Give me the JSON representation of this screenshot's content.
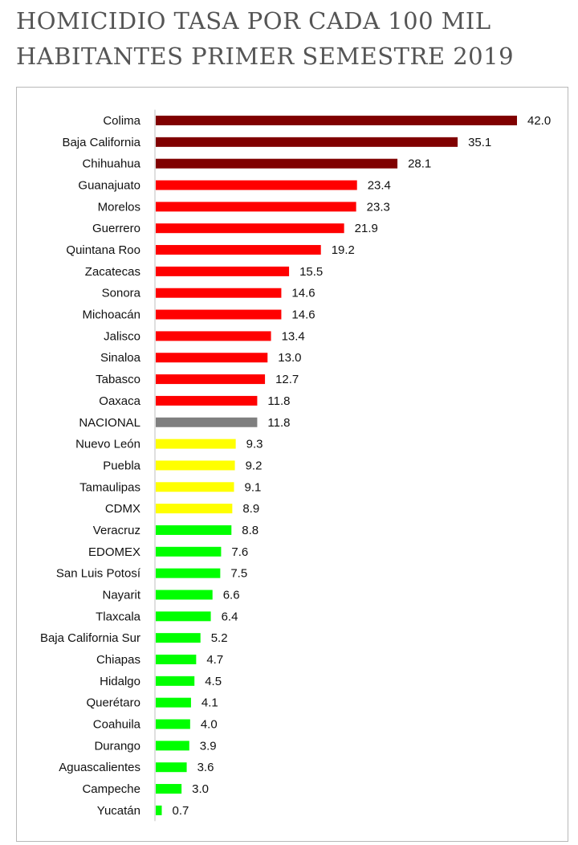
{
  "title_line1": "HOMICIDIO TASA POR CADA 100 MIL",
  "title_line2": "HABITANTES PRIMER SEMESTRE 2019",
  "chart_data": {
    "type": "bar",
    "orientation": "horizontal",
    "title": "HOMICIDIO TASA POR CADA 100 MIL HABITANTES PRIMER SEMESTRE 2019",
    "xlabel": "",
    "ylabel": "",
    "xlim": [
      0,
      42.0
    ],
    "grid": false,
    "categories": [
      "Colima",
      "Baja California",
      "Chihuahua",
      "Guanajuato",
      "Morelos",
      "Guerrero",
      "Quintana Roo",
      "Zacatecas",
      "Sonora",
      "Michoacán",
      "Jalisco",
      "Sinaloa",
      "Tabasco",
      "Oaxaca",
      "NACIONAL",
      "Nuevo León",
      "Puebla",
      "Tamaulipas",
      "CDMX",
      "Veracruz",
      "EDOMEX",
      "San Luis Potosí",
      "Nayarit",
      "Tlaxcala",
      "Baja California Sur",
      "Chiapas",
      "Hidalgo",
      "Querétaro",
      "Coahuila",
      "Durango",
      "Aguascalientes",
      "Campeche",
      "Yucatán"
    ],
    "values": [
      42.0,
      35.1,
      28.1,
      23.4,
      23.3,
      21.9,
      19.2,
      15.5,
      14.6,
      14.6,
      13.4,
      13.0,
      12.7,
      11.8,
      11.8,
      9.3,
      9.2,
      9.1,
      8.9,
      8.8,
      7.6,
      7.5,
      6.6,
      6.4,
      5.2,
      4.7,
      4.5,
      4.1,
      4.0,
      3.9,
      3.6,
      3.0,
      0.7
    ],
    "labels": [
      "42.0",
      "35.1",
      "28.1",
      "23.4",
      "23.3",
      "21.9",
      "19.2",
      "15.5",
      "14.6",
      "14.6",
      "13.4",
      "13.0",
      "12.7",
      "11.8",
      "11.8",
      "9.3",
      "9.2",
      "9.1",
      "8.9",
      "8.8",
      "7.6",
      "7.5",
      "6.6",
      "6.4",
      "5.2",
      "4.7",
      "4.5",
      "4.1",
      "4.0",
      "3.9",
      "3.6",
      "3.0",
      "0.7"
    ],
    "colors": [
      "#800000",
      "#800000",
      "#800000",
      "#ff0000",
      "#ff0000",
      "#ff0000",
      "#ff0000",
      "#ff0000",
      "#ff0000",
      "#ff0000",
      "#ff0000",
      "#ff0000",
      "#ff0000",
      "#ff0000",
      "#7f7f7f",
      "#ffff00",
      "#ffff00",
      "#ffff00",
      "#ffff00",
      "#00ff00",
      "#00ff00",
      "#00ff00",
      "#00ff00",
      "#00ff00",
      "#00ff00",
      "#00ff00",
      "#00ff00",
      "#00ff00",
      "#00ff00",
      "#00ff00",
      "#00ff00",
      "#00ff00",
      "#00ff00"
    ]
  }
}
